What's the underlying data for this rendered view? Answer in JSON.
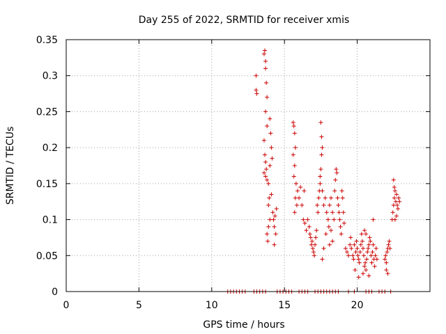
{
  "chart_data": {
    "type": "scatter",
    "title": "Day 255 of 2022, SRMTID for receiver xmis",
    "xlabel": "GPS time / hours",
    "ylabel": "SRMTID / TECUs",
    "xlim": [
      0,
      25
    ],
    "ylim": [
      0,
      0.35
    ],
    "x_ticks": [
      0,
      5,
      10,
      15,
      20
    ],
    "x_tick_labels": [
      "0",
      "5",
      "10",
      "15",
      "20"
    ],
    "y_ticks": [
      0,
      0.05,
      0.1,
      0.15,
      0.2,
      0.25,
      0.3,
      0.35
    ],
    "y_tick_labels": [
      "0",
      "0.05",
      "0.1",
      "0.15",
      "0.2",
      "0.25",
      "0.3",
      "0.35"
    ],
    "grid": true,
    "marker": "plus",
    "marker_color": "#cc0000",
    "series": [
      {
        "name": "xmis",
        "points": [
          [
            13.05,
            0.3
          ],
          [
            13.05,
            0.28
          ],
          [
            13.1,
            0.275
          ],
          [
            13.6,
            0.33
          ],
          [
            13.65,
            0.335
          ],
          [
            13.7,
            0.32
          ],
          [
            13.7,
            0.31
          ],
          [
            13.75,
            0.29
          ],
          [
            13.8,
            0.27
          ],
          [
            13.7,
            0.25
          ],
          [
            13.8,
            0.23
          ],
          [
            13.6,
            0.21
          ],
          [
            13.65,
            0.19
          ],
          [
            13.7,
            0.18
          ],
          [
            13.75,
            0.17
          ],
          [
            13.6,
            0.165
          ],
          [
            13.7,
            0.16
          ],
          [
            13.8,
            0.155
          ],
          [
            13.9,
            0.15
          ],
          [
            14.0,
            0.24
          ],
          [
            14.05,
            0.22
          ],
          [
            14.1,
            0.2
          ],
          [
            14.15,
            0.185
          ],
          [
            14.0,
            0.175
          ],
          [
            13.95,
            0.13
          ],
          [
            13.9,
            0.12
          ],
          [
            14.1,
            0.135
          ],
          [
            14.2,
            0.11
          ],
          [
            14.25,
            0.1
          ],
          [
            14.3,
            0.09
          ],
          [
            14.35,
            0.105
          ],
          [
            14.4,
            0.08
          ],
          [
            14.3,
            0.065
          ],
          [
            14.45,
            0.115
          ],
          [
            13.8,
            0.08
          ],
          [
            13.85,
            0.07
          ],
          [
            13.9,
            0.09
          ],
          [
            14.0,
            0.1
          ],
          [
            15.6,
            0.235
          ],
          [
            15.65,
            0.23
          ],
          [
            15.7,
            0.22
          ],
          [
            15.75,
            0.2
          ],
          [
            15.6,
            0.19
          ],
          [
            15.7,
            0.175
          ],
          [
            15.65,
            0.16
          ],
          [
            15.8,
            0.15
          ],
          [
            15.9,
            0.14
          ],
          [
            15.75,
            0.13
          ],
          [
            15.85,
            0.12
          ],
          [
            15.7,
            0.11
          ],
          [
            16.0,
            0.13
          ],
          [
            16.1,
            0.145
          ],
          [
            16.2,
            0.12
          ],
          [
            16.3,
            0.1
          ],
          [
            16.35,
            0.14
          ],
          [
            16.4,
            0.095
          ],
          [
            16.5,
            0.085
          ],
          [
            16.6,
            0.1
          ],
          [
            16.7,
            0.09
          ],
          [
            16.75,
            0.08
          ],
          [
            16.8,
            0.075
          ],
          [
            16.85,
            0.065
          ],
          [
            16.9,
            0.07
          ],
          [
            16.95,
            0.06
          ],
          [
            17.0,
            0.055
          ],
          [
            17.05,
            0.05
          ],
          [
            17.1,
            0.065
          ],
          [
            17.15,
            0.075
          ],
          [
            17.2,
            0.085
          ],
          [
            17.25,
            0.12
          ],
          [
            17.3,
            0.11
          ],
          [
            17.35,
            0.13
          ],
          [
            17.4,
            0.14
          ],
          [
            17.45,
            0.15
          ],
          [
            17.5,
            0.235
          ],
          [
            17.55,
            0.215
          ],
          [
            17.6,
            0.2
          ],
          [
            17.55,
            0.19
          ],
          [
            17.5,
            0.17
          ],
          [
            17.45,
            0.16
          ],
          [
            17.6,
            0.14
          ],
          [
            17.7,
            0.12
          ],
          [
            17.8,
            0.13
          ],
          [
            17.9,
            0.11
          ],
          [
            18.0,
            0.1
          ],
          [
            18.05,
            0.09
          ],
          [
            18.1,
            0.12
          ],
          [
            18.2,
            0.13
          ],
          [
            18.3,
            0.11
          ],
          [
            18.4,
            0.1
          ],
          [
            18.45,
            0.14
          ],
          [
            18.5,
            0.155
          ],
          [
            18.55,
            0.17
          ],
          [
            18.6,
            0.165
          ],
          [
            18.65,
            0.13
          ],
          [
            18.7,
            0.12
          ],
          [
            18.75,
            0.11
          ],
          [
            18.8,
            0.1
          ],
          [
            18.85,
            0.09
          ],
          [
            18.9,
            0.08
          ],
          [
            18.95,
            0.14
          ],
          [
            19.0,
            0.13
          ],
          [
            19.05,
            0.11
          ],
          [
            19.1,
            0.095
          ],
          [
            18.3,
            0.07
          ],
          [
            18.2,
            0.085
          ],
          [
            18.1,
            0.065
          ],
          [
            17.85,
            0.08
          ],
          [
            17.7,
            0.06
          ],
          [
            17.6,
            0.045
          ],
          [
            19.2,
            0.06
          ],
          [
            19.3,
            0.055
          ],
          [
            19.4,
            0.05
          ],
          [
            19.5,
            0.065
          ],
          [
            19.55,
            0.075
          ],
          [
            19.6,
            0.06
          ],
          [
            19.7,
            0.05
          ],
          [
            19.75,
            0.045
          ],
          [
            19.8,
            0.065
          ],
          [
            19.85,
            0.03
          ],
          [
            19.9,
            0.055
          ],
          [
            19.95,
            0.07
          ],
          [
            20.0,
            0.06
          ],
          [
            20.05,
            0.05
          ],
          [
            20.1,
            0.045
          ],
          [
            20.15,
            0.04
          ],
          [
            20.2,
            0.055
          ],
          [
            20.25,
            0.065
          ],
          [
            20.3,
            0.08
          ],
          [
            20.35,
            0.07
          ],
          [
            20.4,
            0.06
          ],
          [
            20.45,
            0.05
          ],
          [
            20.5,
            0.035
          ],
          [
            20.55,
            0.04
          ],
          [
            20.6,
            0.03
          ],
          [
            20.65,
            0.045
          ],
          [
            20.7,
            0.055
          ],
          [
            20.75,
            0.06
          ],
          [
            20.8,
            0.065
          ],
          [
            20.85,
            0.075
          ],
          [
            20.9,
            0.07
          ],
          [
            20.95,
            0.05
          ],
          [
            21.0,
            0.04
          ],
          [
            21.05,
            0.055
          ],
          [
            21.1,
            0.065
          ],
          [
            21.15,
            0.045
          ],
          [
            21.2,
            0.035
          ],
          [
            21.25,
            0.05
          ],
          [
            21.3,
            0.06
          ],
          [
            21.35,
            0.045
          ],
          [
            20.1,
            0.02
          ],
          [
            20.4,
            0.025
          ],
          [
            20.8,
            0.022
          ],
          [
            21.1,
            0.1
          ],
          [
            20.5,
            0.085
          ],
          [
            20.6,
            0.08
          ],
          [
            21.9,
            0.045
          ],
          [
            21.95,
            0.05
          ],
          [
            22.0,
            0.04
          ],
          [
            22.05,
            0.055
          ],
          [
            22.1,
            0.06
          ],
          [
            22.15,
            0.065
          ],
          [
            22.2,
            0.07
          ],
          [
            22.25,
            0.06
          ],
          [
            22.0,
            0.03
          ],
          [
            22.1,
            0.025
          ],
          [
            22.4,
            0.1
          ],
          [
            22.45,
            0.11
          ],
          [
            22.5,
            0.12
          ],
          [
            22.55,
            0.13
          ],
          [
            22.6,
            0.14
          ],
          [
            22.65,
            0.125
          ],
          [
            22.7,
            0.135
          ],
          [
            22.75,
            0.12
          ],
          [
            22.8,
            0.115
          ],
          [
            22.5,
            0.155
          ],
          [
            22.55,
            0.145
          ],
          [
            22.6,
            0.1
          ],
          [
            22.7,
            0.105
          ],
          [
            22.85,
            0.13
          ],
          [
            22.9,
            0.125
          ],
          [
            11.1,
            0.0
          ],
          [
            11.3,
            0.0
          ],
          [
            11.5,
            0.0
          ],
          [
            11.7,
            0.0
          ],
          [
            11.9,
            0.0
          ],
          [
            12.1,
            0.0
          ],
          [
            12.3,
            0.0
          ],
          [
            12.9,
            0.0
          ],
          [
            13.1,
            0.0
          ],
          [
            13.3,
            0.0
          ],
          [
            13.5,
            0.0
          ],
          [
            13.7,
            0.0
          ],
          [
            14.5,
            0.0
          ],
          [
            14.7,
            0.0
          ],
          [
            14.9,
            0.0
          ],
          [
            15.1,
            0.0
          ],
          [
            15.3,
            0.0
          ],
          [
            15.5,
            0.0
          ],
          [
            16.0,
            0.0
          ],
          [
            16.2,
            0.0
          ],
          [
            16.4,
            0.0
          ],
          [
            16.6,
            0.0
          ],
          [
            17.1,
            0.0
          ],
          [
            17.3,
            0.0
          ],
          [
            17.5,
            0.0
          ],
          [
            17.7,
            0.0
          ],
          [
            17.9,
            0.0
          ],
          [
            18.1,
            0.0
          ],
          [
            18.3,
            0.0
          ],
          [
            18.5,
            0.0
          ],
          [
            18.7,
            0.0
          ],
          [
            19.4,
            0.0
          ],
          [
            19.8,
            0.0
          ],
          [
            20.6,
            0.0
          ],
          [
            20.8,
            0.0
          ],
          [
            21.0,
            0.0
          ],
          [
            21.5,
            0.0
          ],
          [
            21.7,
            0.0
          ],
          [
            21.9,
            0.0
          ],
          [
            22.3,
            0.0
          ]
        ]
      }
    ]
  }
}
